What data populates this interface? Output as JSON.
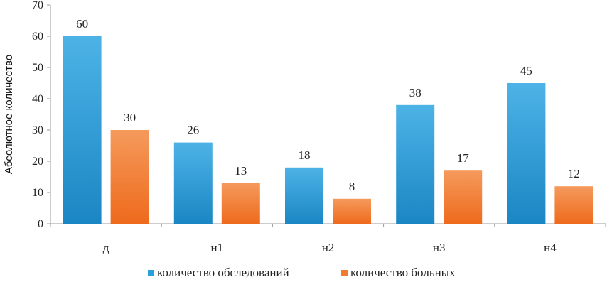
{
  "chart_data": {
    "type": "bar",
    "title": "",
    "xlabel": "",
    "ylabel": "Абсолютное количество",
    "categories": [
      "д",
      "н1",
      "н2",
      "н3",
      "н4"
    ],
    "ylim": [
      0,
      70
    ],
    "yticks": [
      0,
      10,
      20,
      30,
      40,
      50,
      60,
      70
    ],
    "grid": false,
    "legend_position": "bottom",
    "series": [
      {
        "name": "количество обследований",
        "values": [
          60,
          26,
          18,
          38,
          45
        ],
        "color": "#2b9fd8"
      },
      {
        "name": "количество больных",
        "values": [
          30,
          13,
          8,
          17,
          12
        ],
        "color": "#f07a2e"
      }
    ]
  }
}
